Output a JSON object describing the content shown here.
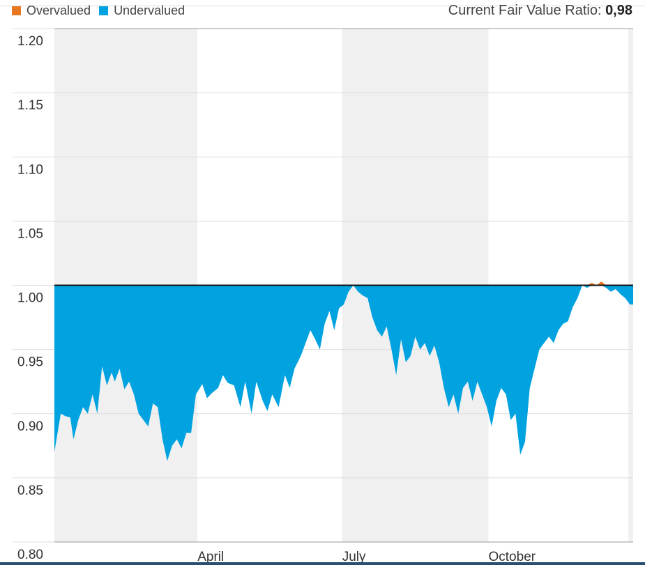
{
  "legend": {
    "overvalued_label": "Overvalued",
    "undervalued_label": "Undervalued"
  },
  "ratio": {
    "label": "Current Fair Value Ratio:",
    "value": "0,98"
  },
  "colors": {
    "overvalued": "#e87722",
    "undervalued": "#00a3e0",
    "band": "#f0f0f0",
    "gridline": "#dddddd",
    "baseline": "#111111"
  },
  "chart_data": {
    "type": "area",
    "baseline": 1.0,
    "ylim": [
      0.8,
      1.2
    ],
    "yticks": [
      "1.20",
      "1.15",
      "1.10",
      "1.05",
      "1.00",
      "0.95",
      "0.90",
      "0.85",
      "0.80"
    ],
    "xlim": [
      "2023-01-01",
      "2023-12-31"
    ],
    "xticks": [
      {
        "label": "April",
        "date": "2023-04-01"
      },
      {
        "label": "July",
        "date": "2023-07-01"
      },
      {
        "label": "October",
        "date": "2023-10-01"
      }
    ],
    "shaded_periods": [
      [
        "2023-01-01",
        "2023-04-01"
      ],
      [
        "2023-07-01",
        "2023-10-01"
      ],
      [
        "2023-12-28",
        "2023-12-31"
      ]
    ],
    "series": [
      {
        "values": [
          [
            "2023-01-01",
            0.87
          ],
          [
            "2023-01-05",
            0.9
          ],
          [
            "2023-01-08",
            0.898
          ],
          [
            "2023-01-11",
            0.897
          ],
          [
            "2023-01-13",
            0.88
          ],
          [
            "2023-01-16",
            0.895
          ],
          [
            "2023-01-19",
            0.905
          ],
          [
            "2023-01-22",
            0.9
          ],
          [
            "2023-01-25",
            0.915
          ],
          [
            "2023-01-28",
            0.9
          ],
          [
            "2023-01-31",
            0.937
          ],
          [
            "2023-02-03",
            0.922
          ],
          [
            "2023-02-06",
            0.932
          ],
          [
            "2023-02-08",
            0.925
          ],
          [
            "2023-02-11",
            0.935
          ],
          [
            "2023-02-14",
            0.919
          ],
          [
            "2023-02-17",
            0.925
          ],
          [
            "2023-02-20",
            0.915
          ],
          [
            "2023-02-23",
            0.9
          ],
          [
            "2023-02-26",
            0.895
          ],
          [
            "2023-03-01",
            0.89
          ],
          [
            "2023-03-04",
            0.908
          ],
          [
            "2023-03-07",
            0.905
          ],
          [
            "2023-03-10",
            0.88
          ],
          [
            "2023-03-13",
            0.863
          ],
          [
            "2023-03-16",
            0.875
          ],
          [
            "2023-03-19",
            0.88
          ],
          [
            "2023-03-22",
            0.873
          ],
          [
            "2023-03-25",
            0.885
          ],
          [
            "2023-03-28",
            0.885
          ],
          [
            "2023-03-31",
            0.915
          ],
          [
            "2023-04-04",
            0.923
          ],
          [
            "2023-04-07",
            0.912
          ],
          [
            "2023-04-10",
            0.916
          ],
          [
            "2023-04-14",
            0.92
          ],
          [
            "2023-04-17",
            0.93
          ],
          [
            "2023-04-20",
            0.924
          ],
          [
            "2023-04-24",
            0.922
          ],
          [
            "2023-04-28",
            0.905
          ],
          [
            "2023-05-01",
            0.925
          ],
          [
            "2023-05-05",
            0.9
          ],
          [
            "2023-05-08",
            0.925
          ],
          [
            "2023-05-12",
            0.91
          ],
          [
            "2023-05-15",
            0.902
          ],
          [
            "2023-05-18",
            0.915
          ],
          [
            "2023-05-22",
            0.905
          ],
          [
            "2023-05-26",
            0.93
          ],
          [
            "2023-05-29",
            0.92
          ],
          [
            "2023-06-01",
            0.935
          ],
          [
            "2023-06-05",
            0.945
          ],
          [
            "2023-06-08",
            0.955
          ],
          [
            "2023-06-11",
            0.965
          ],
          [
            "2023-06-14",
            0.958
          ],
          [
            "2023-06-17",
            0.95
          ],
          [
            "2023-06-20",
            0.97
          ],
          [
            "2023-06-23",
            0.98
          ],
          [
            "2023-06-26",
            0.965
          ],
          [
            "2023-06-29",
            0.982
          ],
          [
            "2023-07-02",
            0.985
          ],
          [
            "2023-07-05",
            0.995
          ],
          [
            "2023-07-08",
            1.0
          ],
          [
            "2023-07-11",
            0.995
          ],
          [
            "2023-07-14",
            0.992
          ],
          [
            "2023-07-17",
            0.99
          ],
          [
            "2023-07-20",
            0.975
          ],
          [
            "2023-07-23",
            0.965
          ],
          [
            "2023-07-26",
            0.96
          ],
          [
            "2023-07-29",
            0.968
          ],
          [
            "2023-08-01",
            0.95
          ],
          [
            "2023-08-04",
            0.93
          ],
          [
            "2023-08-07",
            0.958
          ],
          [
            "2023-08-10",
            0.94
          ],
          [
            "2023-08-13",
            0.945
          ],
          [
            "2023-08-16",
            0.96
          ],
          [
            "2023-08-19",
            0.95
          ],
          [
            "2023-08-22",
            0.955
          ],
          [
            "2023-08-25",
            0.945
          ],
          [
            "2023-08-28",
            0.953
          ],
          [
            "2023-08-31",
            0.94
          ],
          [
            "2023-09-03",
            0.92
          ],
          [
            "2023-09-06",
            0.905
          ],
          [
            "2023-09-09",
            0.915
          ],
          [
            "2023-09-12",
            0.9
          ],
          [
            "2023-09-15",
            0.92
          ],
          [
            "2023-09-18",
            0.925
          ],
          [
            "2023-09-21",
            0.91
          ],
          [
            "2023-09-24",
            0.925
          ],
          [
            "2023-09-27",
            0.915
          ],
          [
            "2023-09-30",
            0.905
          ],
          [
            "2023-10-03",
            0.89
          ],
          [
            "2023-10-06",
            0.91
          ],
          [
            "2023-10-09",
            0.92
          ],
          [
            "2023-10-12",
            0.915
          ],
          [
            "2023-10-15",
            0.895
          ],
          [
            "2023-10-18",
            0.9
          ],
          [
            "2023-10-21",
            0.868
          ],
          [
            "2023-10-24",
            0.878
          ],
          [
            "2023-10-27",
            0.92
          ],
          [
            "2023-10-30",
            0.935
          ],
          [
            "2023-11-02",
            0.95
          ],
          [
            "2023-11-05",
            0.955
          ],
          [
            "2023-11-08",
            0.96
          ],
          [
            "2023-11-11",
            0.955
          ],
          [
            "2023-11-14",
            0.965
          ],
          [
            "2023-11-17",
            0.97
          ],
          [
            "2023-11-20",
            0.972
          ],
          [
            "2023-11-23",
            0.983
          ],
          [
            "2023-11-26",
            0.99
          ],
          [
            "2023-11-29",
            1.0
          ],
          [
            "2023-12-02",
            0.998
          ],
          [
            "2023-12-05",
            1.002
          ],
          [
            "2023-12-08",
            1.0
          ],
          [
            "2023-12-11",
            1.003
          ],
          [
            "2023-12-14",
            0.998
          ],
          [
            "2023-12-17",
            0.995
          ],
          [
            "2023-12-20",
            0.997
          ],
          [
            "2023-12-23",
            0.993
          ],
          [
            "2023-12-26",
            0.99
          ],
          [
            "2023-12-29",
            0.985
          ],
          [
            "2023-12-31",
            0.985
          ]
        ]
      }
    ]
  }
}
